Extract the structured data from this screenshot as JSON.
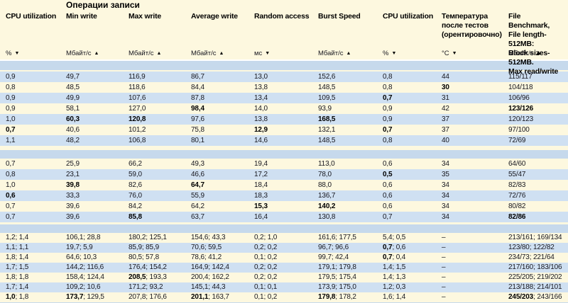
{
  "group_header": "Операции записи",
  "columns": [
    {
      "label": "CPU utilization",
      "unit": "%",
      "sort": "desc"
    },
    {
      "label": "Min write",
      "unit": "Мбайт/с",
      "sort": "asc"
    },
    {
      "label": "Max write",
      "unit": "Мбайт/с",
      "sort": "asc"
    },
    {
      "label": "Average write",
      "unit": "Мбайт/с",
      "sort": "asc"
    },
    {
      "label": "Random access",
      "unit": "мс",
      "sort": "desc"
    },
    {
      "label": "Burst Speed",
      "unit": "Мбайт/с",
      "sort": "asc"
    },
    {
      "label": "CPU utilization",
      "unit": "%",
      "sort": "desc"
    },
    {
      "label": "Температура\nпосле тестов\n(орентировочно)",
      "unit": "°C",
      "sort": "desc"
    },
    {
      "label": "File Benchmark,\nFile length-512MB:\nBlock sizes-512MB.\nMax read/write",
      "unit": "Мбайт/с",
      "sort": "asc"
    }
  ],
  "colors": {
    "cream": "#fdf8df",
    "blue_row": "#cfe0f2",
    "spacer": "#c6d9ec",
    "text": "#17171f",
    "bold": "#000000"
  },
  "groups": [
    {
      "first_stripe": "blue",
      "rows": [
        [
          {
            "v": "0,9"
          },
          {
            "v": "49,7"
          },
          {
            "v": "116,9"
          },
          {
            "v": "86,7"
          },
          {
            "v": "13,0"
          },
          {
            "v": "152,6"
          },
          {
            "v": "0,8"
          },
          {
            "v": "44"
          },
          {
            "v": "115/117"
          }
        ],
        [
          {
            "v": "0,8"
          },
          {
            "v": "48,5"
          },
          {
            "v": "118,6"
          },
          {
            "v": "84,4"
          },
          {
            "v": "13,8"
          },
          {
            "v": "148,5"
          },
          {
            "v": "0,8"
          },
          {
            "v": "30",
            "b": true
          },
          {
            "v": "104/118"
          }
        ],
        [
          {
            "v": "0,9"
          },
          {
            "v": "49,9"
          },
          {
            "v": "107,6"
          },
          {
            "v": "87,8"
          },
          {
            "v": "13,4"
          },
          {
            "v": "109,5"
          },
          {
            "v": "0,7",
            "b": true
          },
          {
            "v": "31"
          },
          {
            "v": "106/96"
          }
        ],
        [
          {
            "v": "0,9"
          },
          {
            "v": "58,1"
          },
          {
            "v": "127,0"
          },
          {
            "v": "98,4",
            "b": true
          },
          {
            "v": "14,0"
          },
          {
            "v": "93,9"
          },
          {
            "v": "0,9"
          },
          {
            "v": "42"
          },
          {
            "v": "123/126",
            "b": true
          }
        ],
        [
          {
            "v": "1,0"
          },
          {
            "v": "60,3",
            "b": true
          },
          {
            "v": "120,8",
            "b": true
          },
          {
            "v": "97,6"
          },
          {
            "v": "13,8"
          },
          {
            "v": "168,5",
            "b": true
          },
          {
            "v": "0,9"
          },
          {
            "v": "37"
          },
          {
            "v": "120/123"
          }
        ],
        [
          {
            "v": "0,7",
            "b": true
          },
          {
            "v": "40,6"
          },
          {
            "v": "101,2"
          },
          {
            "v": "75,8"
          },
          {
            "v": "12,9",
            "b": true
          },
          {
            "v": "132,1"
          },
          {
            "v": "0,7",
            "b": true
          },
          {
            "v": "37"
          },
          {
            "v": "97/100"
          }
        ],
        [
          {
            "v": "1,1"
          },
          {
            "v": "48,2"
          },
          {
            "v": "106,8"
          },
          {
            "v": "80,1"
          },
          {
            "v": "14,6"
          },
          {
            "v": "148,5"
          },
          {
            "v": "0,8"
          },
          {
            "v": "40"
          },
          {
            "v": "72/69"
          }
        ]
      ]
    },
    {
      "first_stripe": "cream",
      "rows": [
        [
          {
            "v": "0,7"
          },
          {
            "v": "25,9"
          },
          {
            "v": "66,2"
          },
          {
            "v": "49,3"
          },
          {
            "v": "19,4"
          },
          {
            "v": "113,0"
          },
          {
            "v": "0,6"
          },
          {
            "v": "34"
          },
          {
            "v": "64/60"
          }
        ],
        [
          {
            "v": "0,8"
          },
          {
            "v": "23,1"
          },
          {
            "v": "59,0"
          },
          {
            "v": "46,6"
          },
          {
            "v": "17,2"
          },
          {
            "v": "78,0"
          },
          {
            "v": "0,5",
            "b": true
          },
          {
            "v": "35"
          },
          {
            "v": "55/47"
          }
        ],
        [
          {
            "v": "1,0"
          },
          {
            "v": "39,8",
            "b": true
          },
          {
            "v": "82,6"
          },
          {
            "v": "64,7",
            "b": true
          },
          {
            "v": "18,4"
          },
          {
            "v": "88,0"
          },
          {
            "v": "0,6"
          },
          {
            "v": "34"
          },
          {
            "v": "82/83"
          }
        ],
        [
          {
            "v": "0,6",
            "b": true
          },
          {
            "v": "33,3"
          },
          {
            "v": "76,0"
          },
          {
            "v": "55,9"
          },
          {
            "v": "18,3"
          },
          {
            "v": "136,7"
          },
          {
            "v": "0,6"
          },
          {
            "v": "34"
          },
          {
            "v": "72/76"
          }
        ],
        [
          {
            "v": "0,7"
          },
          {
            "v": "39,6"
          },
          {
            "v": "84,2"
          },
          {
            "v": "64,2"
          },
          {
            "v": "15,3",
            "b": true
          },
          {
            "v": "140,2",
            "b": true
          },
          {
            "v": "0,6"
          },
          {
            "v": "34"
          },
          {
            "v": "80/82"
          }
        ],
        [
          {
            "v": "0,7"
          },
          {
            "v": "39,6"
          },
          {
            "v": "85,8",
            "b": true
          },
          {
            "v": "63,7"
          },
          {
            "v": "16,4"
          },
          {
            "v": "130,8"
          },
          {
            "v": "0,7"
          },
          {
            "v": "34"
          },
          {
            "v": "82/86",
            "b": true
          }
        ]
      ]
    },
    {
      "first_stripe": "cream",
      "rows": [
        [
          {
            "v": "1,2",
            "v2": "1,4"
          },
          {
            "v": "106,1",
            "v2": "28,8"
          },
          {
            "v": "180,2",
            "v2": "125,1"
          },
          {
            "v": "154,6",
            "v2": "43,3"
          },
          {
            "v": "0,2",
            "v2": "1,0"
          },
          {
            "v": "161,6",
            "v2": "177,5"
          },
          {
            "v": "5,4",
            "v2": "0,5"
          },
          {
            "v": "–"
          },
          {
            "v": "213/161",
            "v2": "169/134"
          }
        ],
        [
          {
            "v": "1,1",
            "v2": "1,1"
          },
          {
            "v": "19,7",
            "v2": "5,9"
          },
          {
            "v": "85,9",
            "v2": "85,9"
          },
          {
            "v": "70,6",
            "v2": "59,5"
          },
          {
            "v": "0,2",
            "v2": "0,2"
          },
          {
            "v": "96,7",
            "v2": "96,6"
          },
          {
            "v": "0,7",
            "b": true,
            "v2": "0,6"
          },
          {
            "v": "–"
          },
          {
            "v": "123/80",
            "v2": "122/82"
          }
        ],
        [
          {
            "v": "1,8",
            "v2": "1,4"
          },
          {
            "v": "64,6",
            "v2": "10,3"
          },
          {
            "v": "80,5",
            "v2": "57,8"
          },
          {
            "v": "78,6",
            "v2": "41,2"
          },
          {
            "v": "0,1",
            "v2": "0,2"
          },
          {
            "v": "99,7",
            "v2": "42,4"
          },
          {
            "v": "0,7",
            "b": true,
            "v2": "0,4"
          },
          {
            "v": "–"
          },
          {
            "v": "234/73",
            "v2": "221/64"
          }
        ],
        [
          {
            "v": "1,7",
            "v2": "1,5"
          },
          {
            "v": "144,2",
            "v2": "116,6"
          },
          {
            "v": "176,4",
            "v2": "154,2"
          },
          {
            "v": "164,9",
            "v2": "142,4"
          },
          {
            "v": "0,2",
            "v2": "0,2"
          },
          {
            "v": "179,1",
            "v2": "179,8"
          },
          {
            "v": "1,4",
            "v2": "1,5"
          },
          {
            "v": "–"
          },
          {
            "v": "217/160",
            "v2": "183/106"
          }
        ],
        [
          {
            "v": "1,8",
            "v2": "1,8"
          },
          {
            "v": "158,4",
            "v2": "124,4"
          },
          {
            "v": "208,5",
            "b": true,
            "v2": "193,3"
          },
          {
            "v": "200,4",
            "v2": "162,2"
          },
          {
            "v": "0,2",
            "v2": "0,2"
          },
          {
            "v": "179,5",
            "v2": "175,4"
          },
          {
            "v": "1,4",
            "v2": "1,3"
          },
          {
            "v": "–"
          },
          {
            "v": "225/205",
            "v2": "219/202"
          }
        ],
        [
          {
            "v": "1,7",
            "v2": "1,4"
          },
          {
            "v": "109,2",
            "v2": "10,6"
          },
          {
            "v": "171,2",
            "v2": "93,2"
          },
          {
            "v": "145,1",
            "v2": "44,3"
          },
          {
            "v": "0,1",
            "v2": "0,1"
          },
          {
            "v": "173,9",
            "v2": "175,0"
          },
          {
            "v": "1,2",
            "v2": "0,3"
          },
          {
            "v": "–"
          },
          {
            "v": "213/188",
            "v2": "214/101"
          }
        ],
        [
          {
            "v": "1,0",
            "b": true,
            "v2": "1,8"
          },
          {
            "v": "173,7",
            "b": true,
            "v2": "129,5"
          },
          {
            "v": "207,8",
            "v2": "176,6"
          },
          {
            "v": "201,1",
            "b": true,
            "v2": "163,7"
          },
          {
            "v": "0,1",
            "v2": "0,2"
          },
          {
            "v": "179,8",
            "b": true,
            "v2": "178,2"
          },
          {
            "v": "1,6",
            "v2": "1,4"
          },
          {
            "v": "–"
          },
          {
            "v": "245/203",
            "b": true,
            "v2": "243/166"
          }
        ]
      ]
    }
  ]
}
